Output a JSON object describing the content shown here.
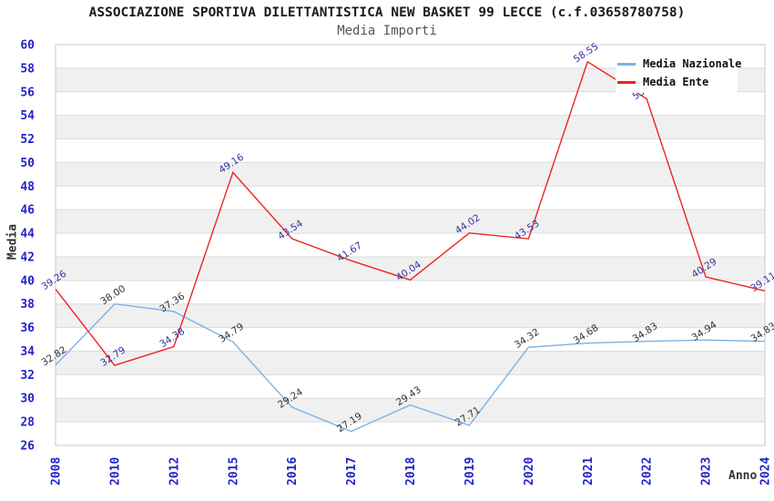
{
  "chart": {
    "title": "ASSOCIAZIONE SPORTIVA DILETTANTISTICA NEW BASKET 99 LECCE (c.f.03658780758)",
    "subtitle": "Media Importi",
    "ylabel": "Media",
    "xlabel": "Anno"
  },
  "chart_data": {
    "type": "line",
    "categories": [
      "2008",
      "2010",
      "2012",
      "2015",
      "2016",
      "2017",
      "2018",
      "2019",
      "2020",
      "2021",
      "2022",
      "2023",
      "2024"
    ],
    "series": [
      {
        "name": "Media Nazionale",
        "color": "#7ab2e8",
        "label_color": "#333333",
        "values": [
          32.82,
          38.0,
          37.36,
          34.79,
          29.24,
          27.19,
          29.43,
          27.71,
          34.32,
          34.68,
          34.83,
          34.94,
          34.83
        ]
      },
      {
        "name": "Media Ente",
        "color": "#ee2222",
        "label_color": "#3333a0",
        "values": [
          39.26,
          32.79,
          34.38,
          49.16,
          43.54,
          41.67,
          40.04,
          44.02,
          43.53,
          58.55,
          55.4,
          40.29,
          39.11
        ]
      }
    ],
    "title": "Media Importi",
    "xlabel": "Anno",
    "ylabel": "Media",
    "ylim": [
      26,
      60
    ],
    "ytick_step": 2,
    "grid": "horizontal-bands",
    "legend_position": "top-right",
    "data_labels": "all-points-2-decimals",
    "note_hidden_label": "2022 Media Ente label hidden behind legend; value estimated from line position"
  },
  "colors": {
    "tick_label_blue": "#2222cc",
    "band_gray": "#f0f0f0",
    "grid_line": "#dcdcdc",
    "plot_border": "#c8c8c8",
    "title_text": "#1a1a1a",
    "subtitle_text": "#555555",
    "axis_title_text": "#333333"
  }
}
